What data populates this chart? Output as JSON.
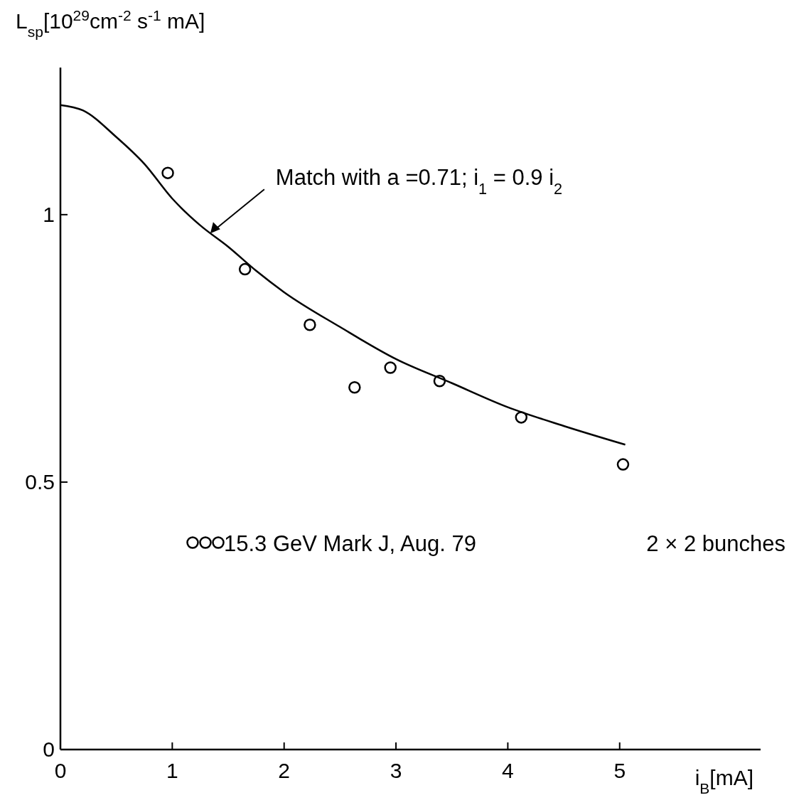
{
  "chart_data": {
    "type": "scatter",
    "ylabel": "L$_{sp}$[10$^{29}$cm$^{-2}$ s$^{-1}$ mA]",
    "xlabel": "i$_{B}$[mA]",
    "xlim": [
      0,
      6.26
    ],
    "ylim": [
      0,
      1.275
    ],
    "xticks": [
      0,
      1,
      2,
      3,
      4,
      5
    ],
    "yticks": [
      0,
      0.5,
      1
    ],
    "grid": false,
    "legend": "center left",
    "series": [
      {
        "name": "15.3 GeV Mark J, Aug. 79",
        "marker": "circle",
        "color": "#000000",
        "x": [
          0.96,
          1.65,
          2.23,
          2.63,
          2.95,
          3.39,
          4.12,
          5.03
        ],
        "values": [
          1.078,
          0.898,
          0.794,
          0.677,
          0.714,
          0.689,
          0.621,
          0.533
        ]
      },
      {
        "type": "line",
        "marker": "none",
        "line_style": "solid",
        "color": "#000000",
        "x": [
          0,
          0.2,
          0.5,
          0.75,
          1,
          1.25,
          1.5,
          1.75,
          2,
          2.5,
          3,
          3.5,
          4,
          4.5,
          5.05
        ],
        "values": [
          1.205,
          1.195,
          1.145,
          1.095,
          1.03,
          0.98,
          0.94,
          0.895,
          0.855,
          0.79,
          0.73,
          0.685,
          0.64,
          0.605,
          0.57
        ]
      }
    ],
    "annotations": [
      {
        "text": "Match with a =0.71; i$_{1}$ = 0.9 i$_{2}$",
        "x": 1.34,
        "y": 0.965
      },
      "2 × 2 bunches"
    ]
  }
}
